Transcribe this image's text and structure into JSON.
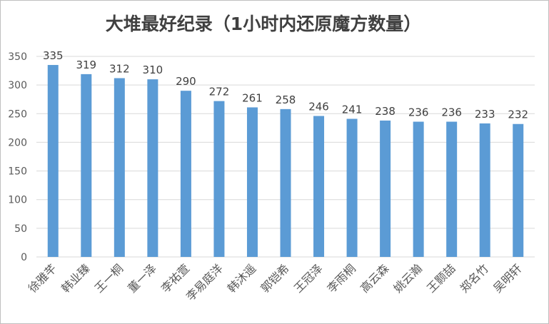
{
  "chart_data": {
    "type": "bar",
    "title": "大堆最好纪录（1小时内还原魔方数量）",
    "xlabel": "",
    "ylabel": "",
    "ylim": [
      0,
      350
    ],
    "yticks": [
      0,
      50,
      100,
      150,
      200,
      250,
      300,
      350
    ],
    "grid": true,
    "legend": "none",
    "categories": [
      "徐雅芊",
      "韩业臻",
      "王一桐",
      "董一泽",
      "李祐萱",
      "李易庭洋",
      "韩沐遥",
      "郭铠希",
      "王冠泽",
      "李雨桐",
      "高云森",
      "姚云瀚",
      "王颢喆",
      "郑名竹",
      "吴明轩"
    ],
    "values": [
      335,
      319,
      312,
      310,
      290,
      272,
      261,
      258,
      246,
      241,
      238,
      236,
      236,
      233,
      232
    ],
    "bar_color": "#5b9bd5",
    "grid_color": "#d9d9d9"
  }
}
